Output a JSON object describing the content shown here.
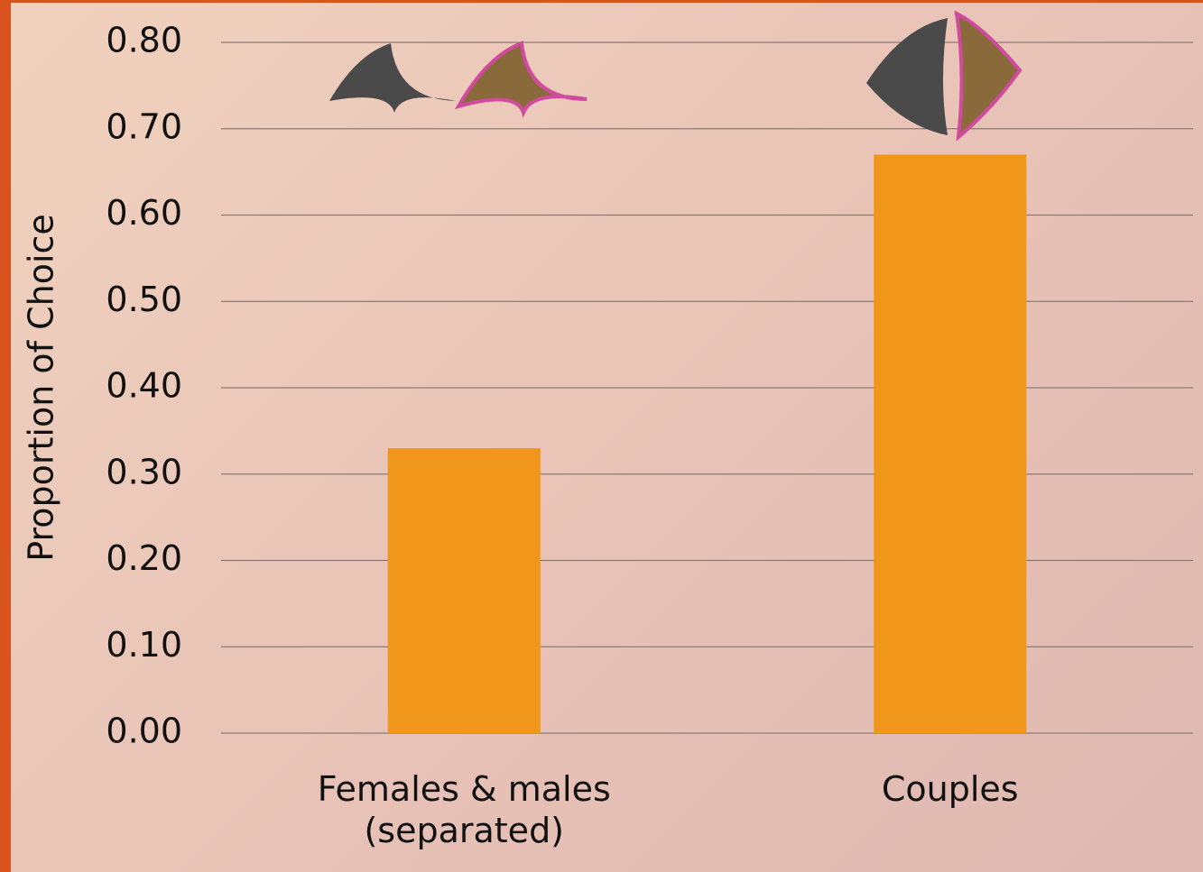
{
  "chart_data": {
    "type": "bar",
    "y_label": "Proportion of Choice",
    "categories": [
      "Females & males (separated)",
      "Couples"
    ],
    "values": [
      0.33,
      0.67
    ],
    "color": "#f0961a",
    "ylim": [
      0,
      0.8
    ],
    "yticks": [
      {
        "value": 0,
        "label": "0.00"
      },
      {
        "value": 0.1,
        "label": "0.10"
      },
      {
        "value": 0.2,
        "label": "0.20"
      },
      {
        "value": 0.3,
        "label": "0.30"
      },
      {
        "value": 0.4,
        "label": "0.40"
      },
      {
        "value": 0.5,
        "label": "0.50"
      },
      {
        "value": 0.6,
        "label": "0.60"
      },
      {
        "value": 0.7,
        "label": "0.70"
      },
      {
        "value": 0.8,
        "label": "0.80"
      }
    ],
    "grid": true
  }
}
